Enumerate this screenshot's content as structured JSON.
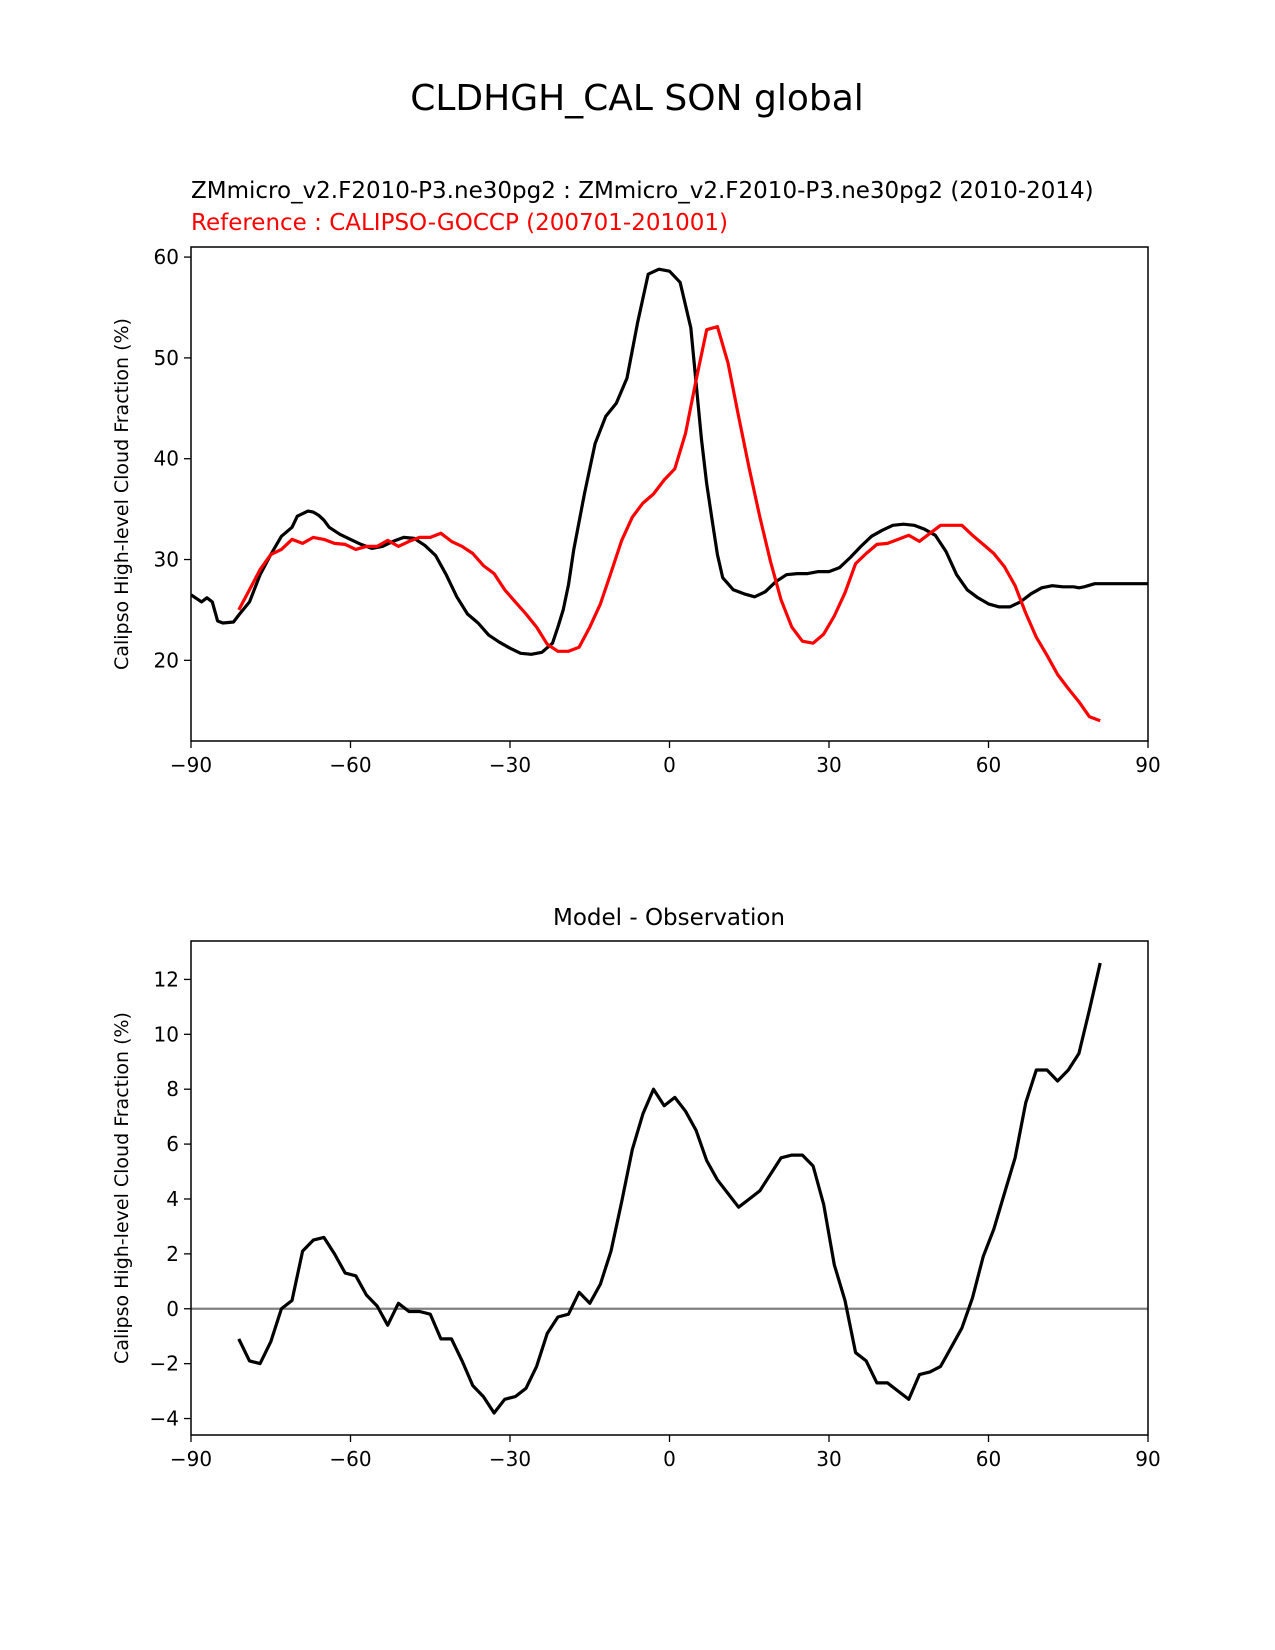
{
  "figure_title": "CLDHGH_CAL SON global",
  "colors": {
    "test": "#000000",
    "reference": "#ff0000",
    "zero_line": "#808080"
  },
  "chart_data": [
    {
      "type": "line",
      "title_test": "ZMmicro_v2.F2010-P3.ne30pg2 : ZMmicro_v2.F2010-P3.ne30pg2 (2010-2014)",
      "title_reference": "Reference : CALIPSO-GOCCP (200701-201001)",
      "xlabel": "",
      "ylabel": "Calipso High-level Cloud Fraction (%)",
      "xlim": [
        -90,
        90
      ],
      "ylim": [
        12,
        61
      ],
      "xticks": [
        -90,
        -60,
        -30,
        0,
        30,
        60,
        90
      ],
      "xtick_labels": [
        "−90",
        "−60",
        "−30",
        "0",
        "30",
        "60",
        "90"
      ],
      "yticks": [
        20,
        30,
        40,
        50,
        60
      ],
      "ytick_labels": [
        "20",
        "30",
        "40",
        "50",
        "60"
      ],
      "series": [
        {
          "name": "test",
          "color": "#000000",
          "x": [
            -90,
            -88,
            -87,
            -86,
            -85,
            -84,
            -82,
            -81,
            -79,
            -77,
            -75,
            -73,
            -71,
            -70,
            -68,
            -67,
            -66,
            -65,
            -64,
            -62,
            -60,
            -58,
            -56,
            -54,
            -52,
            -50,
            -48,
            -46,
            -44,
            -42,
            -40,
            -38,
            -36,
            -34,
            -32,
            -30,
            -28,
            -26,
            -24,
            -22,
            -21,
            -20,
            -19,
            -18,
            -16,
            -14,
            -12,
            -10,
            -8,
            -6,
            -4,
            -2,
            0,
            2,
            4,
            5,
            6,
            7,
            8,
            9,
            10,
            12,
            14,
            16,
            18,
            20,
            22,
            24,
            26,
            28,
            30,
            32,
            34,
            36,
            38,
            40,
            42,
            44,
            46,
            48,
            50,
            52,
            54,
            56,
            58,
            60,
            62,
            64,
            66,
            68,
            70,
            72,
            74,
            76,
            77,
            78,
            80,
            82,
            84,
            86,
            88,
            90
          ],
          "y": [
            26.5,
            25.8,
            26.2,
            25.8,
            23.9,
            23.7,
            23.8,
            24.5,
            25.8,
            28.5,
            30.5,
            32.3,
            33.2,
            34.3,
            34.8,
            34.7,
            34.4,
            33.9,
            33.2,
            32.5,
            32.0,
            31.5,
            31.1,
            31.3,
            31.8,
            32.2,
            32.1,
            31.4,
            30.4,
            28.5,
            26.3,
            24.6,
            23.7,
            22.5,
            21.8,
            21.2,
            20.7,
            20.6,
            20.8,
            21.7,
            23.3,
            25.0,
            27.5,
            31.0,
            36.5,
            41.5,
            44.2,
            45.5,
            48.0,
            53.5,
            58.3,
            58.8,
            58.6,
            57.5,
            53.0,
            47.5,
            42.0,
            37.5,
            34.0,
            30.5,
            28.2,
            27.0,
            26.6,
            26.3,
            26.8,
            27.8,
            28.5,
            28.6,
            28.6,
            28.8,
            28.8,
            29.2,
            30.2,
            31.3,
            32.3,
            32.9,
            33.4,
            33.5,
            33.4,
            33.0,
            32.4,
            30.8,
            28.5,
            27.0,
            26.2,
            25.6,
            25.3,
            25.3,
            25.8,
            26.6,
            27.2,
            27.4,
            27.3,
            27.3,
            27.2,
            27.3,
            27.6,
            27.6,
            27.6,
            27.6,
            27.6,
            27.6
          ]
        },
        {
          "name": "reference",
          "color": "#ff0000",
          "x": [
            -81,
            -79,
            -77,
            -75,
            -73,
            -71,
            -69,
            -67,
            -65,
            -63,
            -61,
            -59,
            -57,
            -55,
            -53,
            -51,
            -49,
            -47,
            -45,
            -43,
            -41,
            -39,
            -37,
            -35,
            -33,
            -31,
            -29,
            -27,
            -25,
            -23,
            -21,
            -19,
            -17,
            -15,
            -13,
            -11,
            -9,
            -7,
            -5,
            -3,
            -1,
            1,
            3,
            5,
            7,
            9,
            11,
            13,
            15,
            17,
            19,
            21,
            23,
            25,
            27,
            29,
            31,
            33,
            35,
            37,
            39,
            41,
            43,
            45,
            47,
            49,
            51,
            53,
            55,
            57,
            59,
            61,
            63,
            65,
            67,
            69,
            71,
            73,
            75,
            77,
            79,
            81
          ],
          "y": [
            25.0,
            27.0,
            29.0,
            30.5,
            31.0,
            32.0,
            31.6,
            32.2,
            32.0,
            31.6,
            31.5,
            31.0,
            31.3,
            31.3,
            31.9,
            31.3,
            31.8,
            32.2,
            32.2,
            32.6,
            31.8,
            31.3,
            30.6,
            29.4,
            28.6,
            27.0,
            25.8,
            24.6,
            23.3,
            21.6,
            20.9,
            20.9,
            21.3,
            23.3,
            25.6,
            28.7,
            31.9,
            34.2,
            35.6,
            36.5,
            37.9,
            39.0,
            42.5,
            47.8,
            52.8,
            53.1,
            49.5,
            44.2,
            39.0,
            34.2,
            29.8,
            26.0,
            23.3,
            21.9,
            21.7,
            22.6,
            24.4,
            26.7,
            29.6,
            30.6,
            31.5,
            31.6,
            32.0,
            32.4,
            31.8,
            32.6,
            33.4,
            33.4,
            33.4,
            32.4,
            31.5,
            30.6,
            29.3,
            27.4,
            24.7,
            22.3,
            20.5,
            18.6,
            17.2,
            15.9,
            14.4,
            14.0
          ]
        }
      ]
    },
    {
      "type": "line",
      "title": "Model - Observation",
      "xlabel": "",
      "ylabel": "Calipso High-level Cloud Fraction (%)",
      "xlim": [
        -90,
        90
      ],
      "ylim": [
        -4.6,
        13.4
      ],
      "xticks": [
        -90,
        -60,
        -30,
        0,
        30,
        60,
        90
      ],
      "xtick_labels": [
        "−90",
        "−60",
        "−30",
        "0",
        "30",
        "60",
        "90"
      ],
      "yticks": [
        -4,
        -2,
        0,
        2,
        4,
        6,
        8,
        10,
        12
      ],
      "ytick_labels": [
        "−4",
        "−2",
        "0",
        "2",
        "4",
        "6",
        "8",
        "10",
        "12"
      ],
      "zero_line": 0,
      "series": [
        {
          "name": "difference",
          "color": "#000000",
          "x": [
            -81,
            -79,
            -77,
            -75,
            -73,
            -71,
            -69,
            -67,
            -65,
            -63,
            -61,
            -59,
            -57,
            -55,
            -53,
            -51,
            -49,
            -47,
            -45,
            -43,
            -41,
            -39,
            -37,
            -35,
            -33,
            -31,
            -29,
            -27,
            -25,
            -23,
            -21,
            -19,
            -17,
            -15,
            -13,
            -11,
            -9,
            -7,
            -5,
            -3,
            -1,
            1,
            3,
            5,
            7,
            9,
            11,
            13,
            15,
            17,
            19,
            21,
            23,
            25,
            27,
            29,
            31,
            33,
            35,
            37,
            39,
            41,
            43,
            45,
            47,
            49,
            51,
            53,
            55,
            57,
            59,
            61,
            63,
            65,
            67,
            69,
            71,
            73,
            75,
            77,
            79,
            81
          ],
          "y": [
            -1.1,
            -1.9,
            -2.0,
            -1.2,
            0.0,
            0.3,
            2.1,
            2.5,
            2.6,
            2.0,
            1.3,
            1.2,
            0.5,
            0.1,
            -0.6,
            0.2,
            -0.1,
            -0.1,
            -0.2,
            -1.1,
            -1.1,
            -1.9,
            -2.8,
            -3.2,
            -3.8,
            -3.3,
            -3.2,
            -2.9,
            -2.1,
            -0.9,
            -0.3,
            -0.2,
            0.6,
            0.2,
            0.9,
            2.1,
            3.9,
            5.8,
            7.1,
            8.0,
            7.4,
            7.7,
            7.2,
            6.5,
            5.4,
            4.7,
            4.2,
            3.7,
            4.0,
            4.3,
            4.9,
            5.5,
            5.6,
            5.6,
            5.2,
            3.8,
            1.6,
            0.3,
            -1.6,
            -1.9,
            -2.7,
            -2.7,
            -3.0,
            -3.3,
            -2.4,
            -2.3,
            -2.1,
            -1.4,
            -0.7,
            0.4,
            1.9,
            2.9,
            4.2,
            5.5,
            7.5,
            8.7,
            8.7,
            8.3,
            8.7,
            9.3,
            10.9,
            12.6
          ]
        }
      ]
    }
  ]
}
